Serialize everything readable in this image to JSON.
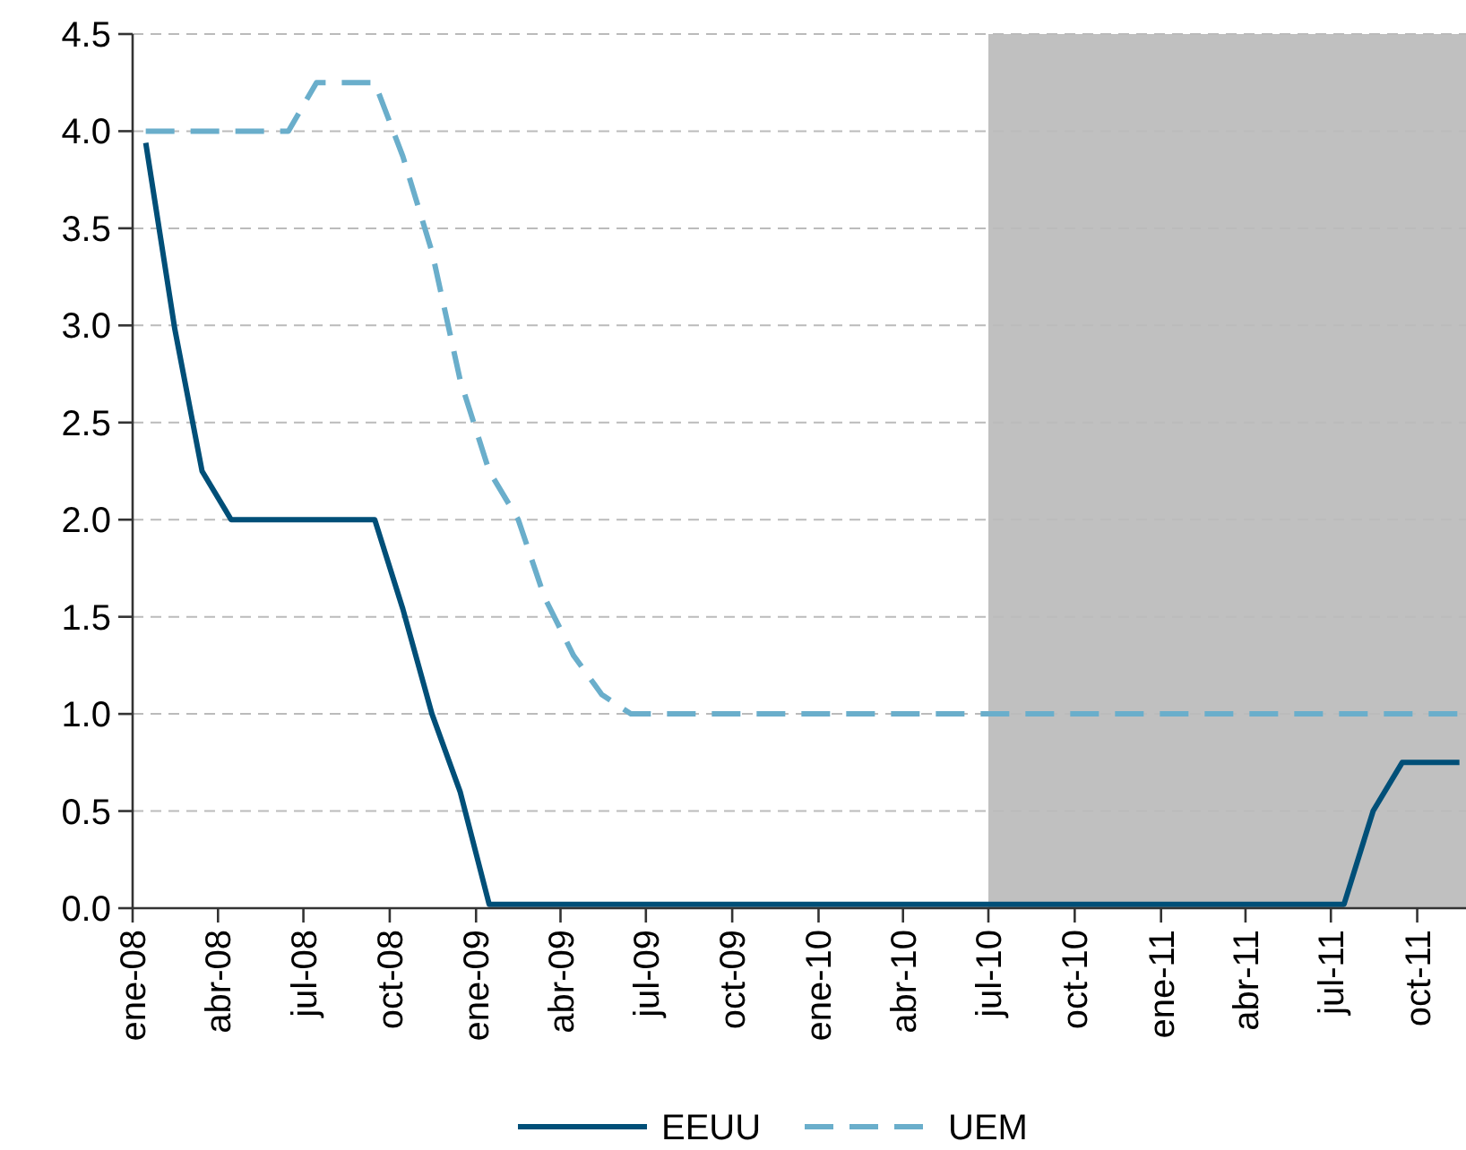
{
  "chart_data": {
    "type": "line",
    "x": [
      "2008-01-15",
      "2008-02-15",
      "2008-03-15",
      "2008-04-15",
      "2008-05-15",
      "2008-06-15",
      "2008-07-15",
      "2008-08-15",
      "2008-09-15",
      "2008-10-15",
      "2008-11-15",
      "2008-12-15",
      "2009-01-15",
      "2009-02-15",
      "2009-03-15",
      "2009-04-15",
      "2009-05-15",
      "2009-06-15",
      "2009-07-15",
      "2009-08-15",
      "2009-09-15",
      "2009-10-15",
      "2009-11-15",
      "2009-12-15",
      "2010-01-15",
      "2010-02-15",
      "2010-03-15",
      "2010-04-15",
      "2010-05-15",
      "2010-06-15",
      "2010-07-15",
      "2010-08-15",
      "2010-09-15",
      "2010-10-15",
      "2010-11-15",
      "2010-12-15",
      "2011-01-15",
      "2011-02-15",
      "2011-03-15",
      "2011-04-15",
      "2011-05-15",
      "2011-06-15",
      "2011-07-15",
      "2011-08-15",
      "2011-09-15",
      "2011-10-15",
      "2011-11-15"
    ],
    "series": [
      {
        "name": "EEUU",
        "color": "#004f78",
        "line_style": "solid",
        "values": [
          3.94,
          2.98,
          2.25,
          2.0,
          2.0,
          2.0,
          2.0,
          2.0,
          2.0,
          1.54,
          1.0,
          0.6,
          0.02,
          0.02,
          0.02,
          0.02,
          0.02,
          0.02,
          0.02,
          0.02,
          0.02,
          0.02,
          0.02,
          0.02,
          0.02,
          0.02,
          0.02,
          0.02,
          0.02,
          0.02,
          0.02,
          0.02,
          0.02,
          0.02,
          0.02,
          0.02,
          0.02,
          0.02,
          0.02,
          0.02,
          0.02,
          0.02,
          0.02,
          0.5,
          0.75,
          0.75,
          0.75
        ]
      },
      {
        "name": "UEM",
        "color": "#6aaecb",
        "line_style": "dashed",
        "values": [
          4.0,
          4.0,
          4.0,
          4.0,
          4.0,
          4.0,
          4.25,
          4.25,
          4.25,
          3.87,
          3.38,
          2.72,
          2.25,
          2.0,
          1.6,
          1.3,
          1.1,
          1.0,
          1.0,
          1.0,
          1.0,
          1.0,
          1.0,
          1.0,
          1.0,
          1.0,
          1.0,
          1.0,
          1.0,
          1.0,
          1.0,
          1.0,
          1.0,
          1.0,
          1.0,
          1.0,
          1.0,
          1.0,
          1.0,
          1.0,
          1.0,
          1.0,
          1.0,
          1.0,
          1.0,
          1.0,
          1.0
        ]
      }
    ],
    "xlim": [
      "2008-01-01",
      "2011-11-22"
    ],
    "xticks": [
      {
        "value": "2008-01-01",
        "label": "ene-08"
      },
      {
        "value": "2008-04-01",
        "label": "abr-08"
      },
      {
        "value": "2008-07-01",
        "label": "jul-08"
      },
      {
        "value": "2008-10-01",
        "label": "oct-08"
      },
      {
        "value": "2009-01-01",
        "label": "ene-09"
      },
      {
        "value": "2009-04-01",
        "label": "abr-09"
      },
      {
        "value": "2009-07-01",
        "label": "jul-09"
      },
      {
        "value": "2009-10-01",
        "label": "oct-09"
      },
      {
        "value": "2010-01-01",
        "label": "ene-10"
      },
      {
        "value": "2010-04-01",
        "label": "abr-10"
      },
      {
        "value": "2010-07-01",
        "label": "jul-10"
      },
      {
        "value": "2010-10-01",
        "label": "oct-10"
      },
      {
        "value": "2011-01-01",
        "label": "ene-11"
      },
      {
        "value": "2011-04-01",
        "label": "abr-11"
      },
      {
        "value": "2011-07-01",
        "label": "jul-11"
      },
      {
        "value": "2011-10-01",
        "label": "oct-11"
      }
    ],
    "ylim": [
      0,
      4.5
    ],
    "yticks": [
      {
        "value": 0,
        "label": "0.0"
      },
      {
        "value": 0.5,
        "label": "0.5"
      },
      {
        "value": 1,
        "label": "1.0"
      },
      {
        "value": 1.5,
        "label": "1.5"
      },
      {
        "value": 2,
        "label": "2.0"
      },
      {
        "value": 2.5,
        "label": "2.5"
      },
      {
        "value": 3,
        "label": "3.0"
      },
      {
        "value": 3.5,
        "label": "3.5"
      },
      {
        "value": 4,
        "label": "4.0"
      },
      {
        "value": 4.5,
        "label": "4.5"
      }
    ],
    "grid": "y",
    "bands": [
      {
        "axis": "x",
        "from": "2010-07-01",
        "to": "2011-11-22",
        "color": "#c0c0c0"
      }
    ],
    "legend": "bottom",
    "marker": "none"
  }
}
